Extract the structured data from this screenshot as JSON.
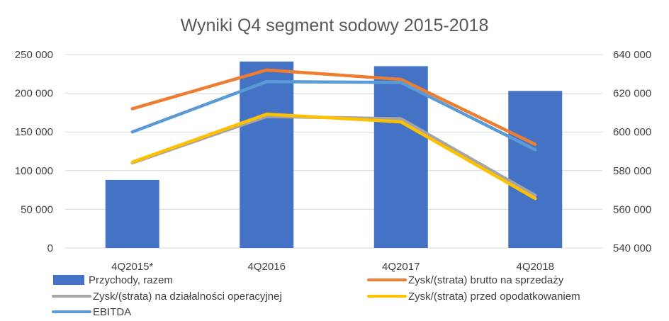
{
  "chart_data": {
    "type": "bar",
    "title": "Wyniki Q4 segment sodowy 2015-2018",
    "categories": [
      "4Q2015*",
      "4Q2016",
      "4Q2017",
      "4Q2018"
    ],
    "y_left": {
      "range": [
        0,
        250000
      ],
      "ticks": [
        "0",
        "50 000",
        "100 000",
        "150 000",
        "200 000",
        "250 000"
      ]
    },
    "y_right": {
      "range": [
        540000,
        640000
      ],
      "ticks": [
        "540 000",
        "560 000",
        "580 000",
        "600 000",
        "620 000",
        "640 000"
      ]
    },
    "grid": true,
    "legend_position": "bottom",
    "series": [
      {
        "name": "Przychody, razem",
        "kind": "bar",
        "axis": "left",
        "color": "#4472C4",
        "values": [
          88000,
          241000,
          235000,
          203000
        ]
      },
      {
        "name": "Zysk/(strata) brutto na sprzedaży",
        "kind": "line",
        "axis": "left",
        "color": "#ED7D31",
        "values": [
          180000,
          230000,
          218000,
          134000
        ]
      },
      {
        "name": "Zysk/(strata) na działalności operacyjnej",
        "kind": "line",
        "axis": "left",
        "color": "#A5A5A5",
        "values": [
          110000,
          170000,
          167000,
          68000
        ]
      },
      {
        "name": "Zysk/(strata) przed opodatkowaniem",
        "kind": "line",
        "axis": "left",
        "color": "#FFC000",
        "values": [
          111000,
          173000,
          163000,
          64000
        ]
      },
      {
        "name": "EBITDA",
        "kind": "line",
        "axis": "left",
        "color": "#5B9BD5",
        "values": [
          150000,
          215000,
          214000,
          127000
        ]
      }
    ]
  }
}
